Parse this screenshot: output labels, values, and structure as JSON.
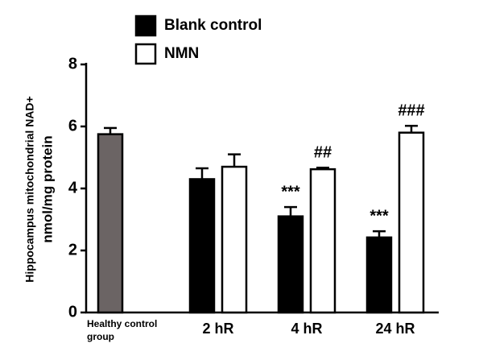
{
  "chart_data": {
    "type": "bar",
    "ylabel": [
      "Hippocampus mitochondrial NAD+",
      "nmol/mg protein"
    ],
    "ylim": [
      0,
      8
    ],
    "yticks": [
      0,
      2,
      4,
      6,
      8
    ],
    "control": {
      "category": "Healthy control group",
      "value": 5.75,
      "error": 0.2,
      "color": "#6b6464"
    },
    "categories": [
      "2 hR",
      "4 hR",
      "24 hR"
    ],
    "series": [
      {
        "name": "Blank control",
        "color": "#000000",
        "values": [
          4.3,
          3.1,
          2.42
        ],
        "errors": [
          0.35,
          0.3,
          0.2
        ],
        "annotations": [
          null,
          "***",
          "***"
        ]
      },
      {
        "name": "NMN",
        "color": "#ffffff",
        "values": [
          4.7,
          4.62,
          5.8
        ],
        "errors": [
          0.4,
          0.05,
          0.22
        ],
        "annotations": [
          null,
          "##",
          "###"
        ]
      }
    ]
  }
}
